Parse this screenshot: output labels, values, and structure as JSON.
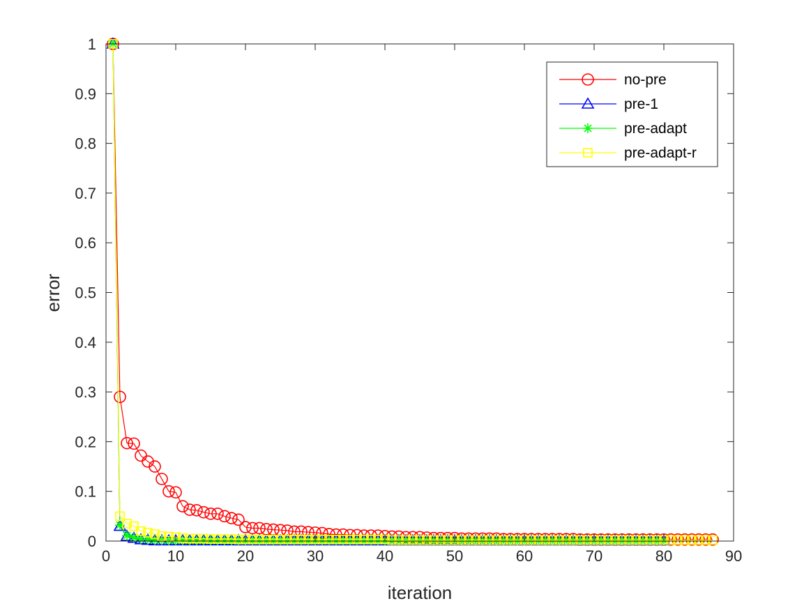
{
  "chart_data": {
    "type": "line",
    "title": "",
    "xlabel": "iteration",
    "ylabel": "error",
    "xlim": [
      0,
      90
    ],
    "ylim": [
      0,
      1
    ],
    "xticks": [
      "0",
      "10",
      "20",
      "30",
      "40",
      "50",
      "60",
      "70",
      "80",
      "90"
    ],
    "yticks": [
      "0",
      "0.1",
      "0.2",
      "0.3",
      "0.4",
      "0.5",
      "0.6",
      "0.7",
      "0.8",
      "0.9",
      "1"
    ],
    "grid": false,
    "legend_position": "top-right",
    "series": [
      {
        "name": "no-pre",
        "color": "#ff0000",
        "marker": "circle",
        "x": [
          1,
          2,
          3,
          4,
          5,
          6,
          7,
          8,
          9,
          10,
          11,
          12,
          13,
          14,
          15,
          16,
          17,
          18,
          19,
          20,
          21,
          22,
          23,
          24,
          25,
          26,
          27,
          28,
          29,
          30,
          31,
          32,
          33,
          34,
          35,
          36,
          37,
          38,
          39,
          40,
          41,
          42,
          43,
          44,
          45,
          46,
          47,
          48,
          49,
          50,
          51,
          52,
          53,
          54,
          55,
          56,
          57,
          58,
          59,
          60,
          61,
          62,
          63,
          64,
          65,
          66,
          67,
          68,
          69,
          70,
          71,
          72,
          73,
          74,
          75,
          76,
          77,
          78,
          79,
          80,
          81,
          82,
          83,
          84,
          85,
          86,
          87
        ],
        "y": [
          1,
          0.29,
          0.197,
          0.196,
          0.172,
          0.16,
          0.15,
          0.125,
          0.1,
          0.098,
          0.07,
          0.063,
          0.062,
          0.058,
          0.055,
          0.055,
          0.05,
          0.046,
          0.043,
          0.028,
          0.026,
          0.026,
          0.024,
          0.023,
          0.022,
          0.021,
          0.019,
          0.019,
          0.018,
          0.017,
          0.016,
          0.014,
          0.013,
          0.013,
          0.012,
          0.012,
          0.011,
          0.011,
          0.011,
          0.01,
          0.009,
          0.009,
          0.008,
          0.008,
          0.008,
          0.007,
          0.006,
          0.006,
          0.006,
          0.006,
          0.005,
          0.005,
          0.005,
          0.005,
          0.005,
          0.005,
          0.004,
          0.004,
          0.004,
          0.004,
          0.004,
          0.004,
          0.004,
          0.004,
          0.004,
          0.004,
          0.004,
          0.003,
          0.003,
          0.003,
          0.003,
          0.003,
          0.003,
          0.003,
          0.003,
          0.003,
          0.003,
          0.003,
          0.003,
          0.003,
          0.003,
          0.003,
          0.003,
          0.003,
          0.003,
          0.003,
          0.003
        ]
      },
      {
        "name": "pre-1",
        "color": "#0000ff",
        "marker": "triangle",
        "x": [
          1,
          2,
          3,
          4,
          5,
          6,
          7,
          8,
          9,
          10,
          11,
          12,
          13,
          14,
          15,
          16,
          17,
          18,
          19,
          20,
          21,
          22,
          23,
          24,
          25,
          26,
          27,
          28,
          29,
          30,
          31,
          32,
          33,
          34,
          35,
          36,
          37,
          38,
          39,
          40,
          41,
          42,
          43,
          44,
          45,
          46,
          47,
          48,
          49,
          50,
          51,
          52,
          53,
          54,
          55,
          56,
          57,
          58,
          59,
          60,
          61,
          62,
          63,
          64,
          65,
          66,
          67,
          68,
          69,
          70,
          71,
          72,
          73,
          74,
          75,
          76,
          77,
          78,
          79,
          80
        ],
        "y": [
          1,
          0.03,
          0.01,
          0.006,
          0.003,
          0.002,
          0.001,
          0.001,
          0.001,
          0.001,
          0.001,
          0.001,
          0.001,
          0.001,
          0.001,
          0.001,
          0.001,
          0.001,
          0.001,
          0.001,
          0.001,
          0.001,
          0.001,
          0.001,
          0.001,
          0.001,
          0.001,
          0.001,
          0.001,
          0.001,
          0.001,
          0.001,
          0.001,
          0.001,
          0.001,
          0.001,
          0.001,
          0.001,
          0.001,
          0.001,
          0.001,
          0.001,
          0.001,
          0.001,
          0.001,
          0.001,
          0.001,
          0.001,
          0.001,
          0.001,
          0.001,
          0.001,
          0.001,
          0.001,
          0.001,
          0.001,
          0.001,
          0.001,
          0.001,
          0.001,
          0.001,
          0.001,
          0.001,
          0.001,
          0.001,
          0.001,
          0.001,
          0.001,
          0.001,
          0.001,
          0.001,
          0.001,
          0.001,
          0.001,
          0.001,
          0.001,
          0.001,
          0.001,
          0.001,
          0.001
        ]
      },
      {
        "name": "pre-adapt",
        "color": "#00ff00",
        "marker": "asterisk",
        "x": [
          1,
          2,
          3,
          4,
          5,
          6,
          7,
          8,
          9,
          10,
          11,
          12,
          13,
          14,
          15,
          16,
          17,
          18,
          19,
          20,
          21,
          22,
          23,
          24,
          25,
          26,
          27,
          28,
          29,
          30,
          31,
          32,
          33,
          34,
          35,
          36,
          37,
          38,
          39,
          40,
          41,
          42,
          43,
          44,
          45,
          46,
          47,
          48,
          49,
          50,
          51,
          52,
          53,
          54,
          55,
          56,
          57,
          58,
          59,
          60,
          61,
          62,
          63,
          64,
          65,
          66,
          67,
          68,
          69,
          70,
          71,
          72,
          73,
          74,
          75,
          76,
          77,
          78,
          79,
          80
        ],
        "y": [
          1,
          0.032,
          0.011,
          0.007,
          0.004,
          0.003,
          0.002,
          0.002,
          0.001,
          0.001,
          0.001,
          0.001,
          0.001,
          0.001,
          0.001,
          0.001,
          0.001,
          0.001,
          0.001,
          0.001,
          0.001,
          0.001,
          0.001,
          0.001,
          0.001,
          0.001,
          0.001,
          0.001,
          0.001,
          0.001,
          0.001,
          0.001,
          0.001,
          0.001,
          0.001,
          0.001,
          0.001,
          0.001,
          0.001,
          0.001,
          0.001,
          0.001,
          0.001,
          0.001,
          0.001,
          0.001,
          0.001,
          0.001,
          0.001,
          0.001,
          0.001,
          0.001,
          0.001,
          0.001,
          0.001,
          0.001,
          0.001,
          0.001,
          0.001,
          0.001,
          0.001,
          0.001,
          0.001,
          0.001,
          0.001,
          0.001,
          0.001,
          0.001,
          0.001,
          0.001,
          0.001,
          0.001,
          0.001,
          0.001,
          0.001,
          0.001,
          0.001,
          0.001,
          0.001,
          0.001
        ]
      },
      {
        "name": "pre-adapt-r",
        "color": "#ffff00",
        "marker": "square",
        "x": [
          1,
          2,
          3,
          4,
          5,
          6,
          7,
          8,
          9,
          10,
          11,
          12,
          13,
          14,
          15,
          16,
          17,
          18,
          19,
          20,
          21,
          22,
          23,
          24,
          25,
          26,
          27,
          28,
          29,
          30,
          31,
          32,
          33,
          34,
          35,
          36,
          37,
          38,
          39,
          40,
          41,
          42,
          43,
          44,
          45,
          46,
          47,
          48,
          49,
          50,
          51,
          52,
          53,
          54,
          55,
          56,
          57,
          58,
          59,
          60,
          61,
          62,
          63,
          64,
          65,
          66,
          67,
          68,
          69,
          70,
          71,
          72,
          73,
          74,
          75,
          76,
          77,
          78,
          79,
          80,
          81,
          82,
          83,
          84,
          85,
          86,
          87
        ],
        "y": [
          1,
          0.05,
          0.035,
          0.03,
          0.02,
          0.017,
          0.014,
          0.01,
          0.009,
          0.008,
          0.006,
          0.005,
          0.005,
          0.005,
          0.004,
          0.004,
          0.004,
          0.004,
          0.003,
          0.003,
          0.003,
          0.003,
          0.003,
          0.003,
          0.003,
          0.003,
          0.003,
          0.003,
          0.003,
          0.003,
          0.003,
          0.003,
          0.003,
          0.003,
          0.003,
          0.003,
          0.003,
          0.003,
          0.003,
          0.003,
          0.002,
          0.002,
          0.002,
          0.002,
          0.002,
          0.002,
          0.002,
          0.002,
          0.002,
          0.002,
          0.002,
          0.002,
          0.002,
          0.002,
          0.002,
          0.002,
          0.002,
          0.002,
          0.002,
          0.002,
          0.002,
          0.002,
          0.002,
          0.002,
          0.002,
          0.002,
          0.002,
          0.002,
          0.002,
          0.002,
          0.002,
          0.002,
          0.002,
          0.002,
          0.002,
          0.002,
          0.002,
          0.002,
          0.002,
          0.002,
          0.002,
          0.002,
          0.002,
          0.002,
          0.002,
          0.002,
          0.002
        ]
      }
    ]
  }
}
